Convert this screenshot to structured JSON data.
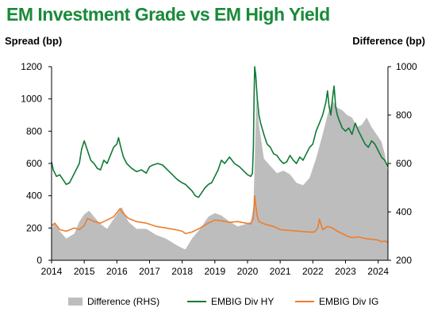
{
  "title": "EM Investment Grade vs EM High Yield",
  "colors": {
    "title": "#1a8a3a",
    "hy": "#0f7a35",
    "ig": "#ee7d2e",
    "difference": "#bdbdbd"
  },
  "chart_data": {
    "type": "line",
    "title": "EM Investment Grade vs EM High Yield",
    "ylabel_left": "Spread (bp)",
    "ylabel_right": "Difference (bp)",
    "xlim": [
      2014.0,
      2024.3
    ],
    "ylim_left": [
      0,
      1200
    ],
    "ylim_right": [
      200,
      1000
    ],
    "x_ticks": [
      "2014",
      "2015",
      "2016",
      "2017",
      "2018",
      "2019",
      "2020",
      "2021",
      "2022",
      "2023",
      "2024"
    ],
    "y_left_ticks": [
      "0",
      "200",
      "400",
      "600",
      "800",
      "1000",
      "1200"
    ],
    "y_right_ticks": [
      "200",
      "400",
      "600",
      "800",
      "1000"
    ],
    "legend_position": "bottom",
    "series": [
      {
        "name": "Difference (RHS)",
        "type": "area",
        "axis": "right",
        "x": [
          2014.0,
          2014.1,
          2014.25,
          2014.45,
          2014.7,
          2014.85,
          2015.0,
          2015.15,
          2015.3,
          2015.5,
          2015.7,
          2015.9,
          2016.05,
          2016.15,
          2016.35,
          2016.6,
          2016.9,
          2017.2,
          2017.5,
          2017.8,
          2018.0,
          2018.1,
          2018.3,
          2018.55,
          2018.8,
          2019.0,
          2019.2,
          2019.45,
          2019.7,
          2019.95,
          2020.1,
          2020.18,
          2020.22,
          2020.27,
          2020.35,
          2020.5,
          2020.7,
          2020.9,
          2021.1,
          2021.3,
          2021.5,
          2021.7,
          2021.9,
          2022.1,
          2022.3,
          2022.45,
          2022.6,
          2022.75,
          2022.9,
          2023.05,
          2023.2,
          2023.35,
          2023.5,
          2023.65,
          2023.8,
          2023.95,
          2024.1,
          2024.2,
          2024.3
        ],
        "y": [
          330,
          355,
          320,
          290,
          310,
          360,
          390,
          405,
          380,
          350,
          330,
          370,
          400,
          420,
          360,
          330,
          330,
          305,
          290,
          265,
          250,
          245,
          290,
          330,
          380,
          395,
          385,
          360,
          340,
          350,
          360,
          420,
          600,
          870,
          760,
          620,
          590,
          560,
          570,
          555,
          520,
          510,
          540,
          620,
          720,
          800,
          860,
          830,
          820,
          800,
          790,
          750,
          760,
          790,
          750,
          720,
          690,
          640,
          560
        ]
      },
      {
        "name": "EMBIG Div HY",
        "type": "line",
        "axis": "left",
        "x": [
          2014.0,
          2014.05,
          2014.15,
          2014.25,
          2014.35,
          2014.45,
          2014.55,
          2014.65,
          2014.75,
          2014.85,
          2014.92,
          2015.0,
          2015.1,
          2015.2,
          2015.3,
          2015.4,
          2015.5,
          2015.6,
          2015.7,
          2015.8,
          2015.9,
          2016.0,
          2016.05,
          2016.12,
          2016.2,
          2016.3,
          2016.45,
          2016.6,
          2016.75,
          2016.9,
          2017.0,
          2017.1,
          2017.25,
          2017.4,
          2017.55,
          2017.7,
          2017.85,
          2018.0,
          2018.1,
          2018.2,
          2018.3,
          2018.4,
          2018.5,
          2018.6,
          2018.7,
          2018.8,
          2018.9,
          2019.0,
          2019.1,
          2019.2,
          2019.3,
          2019.45,
          2019.6,
          2019.75,
          2019.9,
          2020.0,
          2020.1,
          2020.15,
          2020.18,
          2020.2,
          2020.22,
          2020.25,
          2020.3,
          2020.35,
          2020.4,
          2020.5,
          2020.6,
          2020.7,
          2020.8,
          2020.9,
          2021.0,
          2021.1,
          2021.2,
          2021.3,
          2021.4,
          2021.5,
          2021.6,
          2021.7,
          2021.8,
          2021.9,
          2022.0,
          2022.1,
          2022.2,
          2022.3,
          2022.4,
          2022.45,
          2022.5,
          2022.55,
          2022.6,
          2022.65,
          2022.7,
          2022.75,
          2022.8,
          2022.9,
          2023.0,
          2023.1,
          2023.2,
          2023.3,
          2023.4,
          2023.5,
          2023.6,
          2023.7,
          2023.8,
          2023.9,
          2024.0,
          2024.1,
          2024.2,
          2024.3
        ],
        "y": [
          610,
          560,
          520,
          530,
          500,
          470,
          480,
          520,
          560,
          600,
          690,
          740,
          680,
          620,
          600,
          570,
          560,
          620,
          600,
          650,
          700,
          720,
          760,
          700,
          640,
          600,
          570,
          550,
          560,
          540,
          580,
          590,
          600,
          590,
          560,
          530,
          500,
          480,
          470,
          450,
          430,
          400,
          390,
          420,
          450,
          470,
          480,
          520,
          560,
          620,
          600,
          640,
          600,
          580,
          550,
          530,
          520,
          540,
          700,
          1000,
          1200,
          1150,
          1000,
          900,
          850,
          780,
          720,
          700,
          660,
          650,
          620,
          600,
          610,
          650,
          620,
          600,
          640,
          620,
          660,
          700,
          720,
          800,
          850,
          900,
          980,
          1050,
          950,
          900,
          1000,
          1080,
          950,
          900,
          870,
          820,
          800,
          820,
          780,
          850,
          800,
          760,
          720,
          700,
          740,
          720,
          680,
          640,
          620,
          580
        ]
      },
      {
        "name": "EMBIG Div IG",
        "type": "line",
        "axis": "left",
        "x": [
          2014.0,
          2014.1,
          2014.25,
          2014.45,
          2014.7,
          2014.85,
          2015.0,
          2015.1,
          2015.3,
          2015.5,
          2015.7,
          2015.9,
          2016.1,
          2016.15,
          2016.35,
          2016.6,
          2016.9,
          2017.2,
          2017.5,
          2017.8,
          2018.0,
          2018.1,
          2018.3,
          2018.55,
          2018.8,
          2019.0,
          2019.2,
          2019.45,
          2019.7,
          2019.95,
          2020.1,
          2020.18,
          2020.22,
          2020.25,
          2020.3,
          2020.35,
          2020.45,
          2020.6,
          2020.8,
          2021.0,
          2021.3,
          2021.6,
          2021.9,
          2022.05,
          2022.15,
          2022.2,
          2022.3,
          2022.45,
          2022.6,
          2022.75,
          2022.9,
          2023.05,
          2023.2,
          2023.4,
          2023.6,
          2023.8,
          2024.0,
          2024.1,
          2024.2,
          2024.3
        ],
        "y": [
          215,
          230,
          190,
          180,
          200,
          190,
          215,
          260,
          240,
          230,
          250,
          270,
          320,
          300,
          260,
          240,
          230,
          210,
          200,
          190,
          180,
          165,
          175,
          200,
          230,
          250,
          245,
          235,
          240,
          230,
          225,
          260,
          400,
          340,
          270,
          240,
          230,
          220,
          210,
          190,
          185,
          180,
          175,
          175,
          200,
          255,
          190,
          210,
          200,
          180,
          165,
          150,
          140,
          145,
          135,
          130,
          125,
          115,
          120,
          110
        ]
      }
    ]
  },
  "legend": {
    "difference": "Difference (RHS)",
    "hy": "EMBIG Div HY",
    "ig": "EMBIG Div IG"
  }
}
